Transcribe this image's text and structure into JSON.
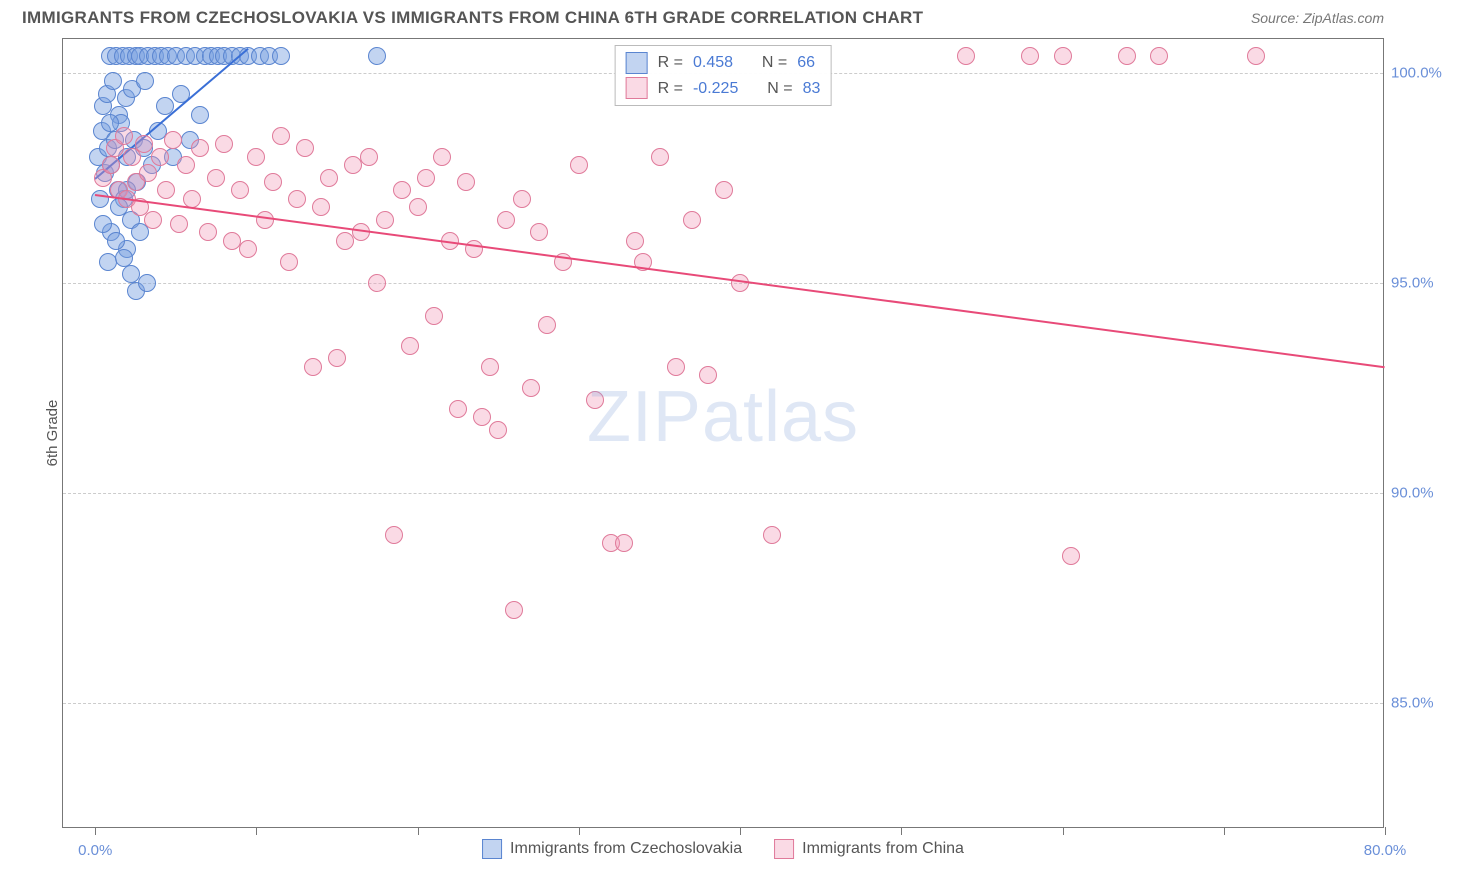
{
  "title": "IMMIGRANTS FROM CZECHOSLOVAKIA VS IMMIGRANTS FROM CHINA 6TH GRADE CORRELATION CHART",
  "source": "Source: ZipAtlas.com",
  "watermark_a": "ZIP",
  "watermark_b": "atlas",
  "chart": {
    "type": "scatter",
    "background_color": "#ffffff",
    "border_color": "#777777",
    "grid_color": "#cccccc",
    "yaxis": {
      "title": "6th Grade",
      "title_fontsize": 15,
      "title_color": "#555555",
      "min": 82.0,
      "max": 100.8,
      "ticks": [
        85.0,
        90.0,
        95.0,
        100.0
      ],
      "tick_labels": [
        "85.0%",
        "90.0%",
        "95.0%",
        "100.0%"
      ],
      "tick_color": "#6a8fd8",
      "tick_fontsize": 15,
      "label_side": "right"
    },
    "xaxis": {
      "min": -2.0,
      "max": 80.0,
      "ticks": [
        0.0,
        10.0,
        20.0,
        30.0,
        40.0,
        50.0,
        60.0,
        70.0,
        80.0
      ],
      "tick_labels_shown": {
        "0.0": "0.0%",
        "80.0": "80.0%"
      },
      "tick_color": "#6a8fd8",
      "tick_fontsize": 15
    },
    "series": [
      {
        "key": "czech",
        "label": "Immigrants from Czechoslovakia",
        "marker_color_fill": "rgba(120,160,225,0.45)",
        "marker_color_stroke": "#5a85d0",
        "marker_radius": 9,
        "trend_color": "#3a6fd6",
        "trend_width": 2,
        "trend": {
          "x1": 0.0,
          "y1": 97.5,
          "x2": 9.5,
          "y2": 100.6
        },
        "R": "0.458",
        "N": "66",
        "points": [
          [
            0.2,
            98.0
          ],
          [
            0.4,
            98.6
          ],
          [
            0.5,
            99.2
          ],
          [
            0.6,
            97.6
          ],
          [
            0.7,
            99.5
          ],
          [
            0.8,
            98.2
          ],
          [
            0.9,
            100.4
          ],
          [
            1.0,
            97.8
          ],
          [
            1.1,
            99.8
          ],
          [
            1.2,
            98.4
          ],
          [
            1.3,
            100.4
          ],
          [
            1.4,
            97.2
          ],
          [
            1.5,
            99.0
          ],
          [
            1.6,
            98.8
          ],
          [
            1.7,
            100.4
          ],
          [
            1.8,
            97.0
          ],
          [
            1.9,
            99.4
          ],
          [
            2.0,
            98.0
          ],
          [
            2.1,
            100.4
          ],
          [
            2.2,
            96.5
          ],
          [
            2.3,
            99.6
          ],
          [
            2.4,
            98.4
          ],
          [
            2.5,
            100.4
          ],
          [
            2.6,
            97.4
          ],
          [
            2.8,
            100.4
          ],
          [
            3.0,
            98.2
          ],
          [
            3.1,
            99.8
          ],
          [
            3.3,
            100.4
          ],
          [
            3.5,
            97.8
          ],
          [
            3.7,
            100.4
          ],
          [
            3.9,
            98.6
          ],
          [
            4.1,
            100.4
          ],
          [
            4.3,
            99.2
          ],
          [
            4.5,
            100.4
          ],
          [
            4.8,
            98.0
          ],
          [
            5.0,
            100.4
          ],
          [
            5.3,
            99.5
          ],
          [
            5.6,
            100.4
          ],
          [
            5.9,
            98.4
          ],
          [
            6.2,
            100.4
          ],
          [
            6.5,
            99.0
          ],
          [
            6.8,
            100.4
          ],
          [
            7.2,
            100.4
          ],
          [
            7.6,
            100.4
          ],
          [
            8.0,
            100.4
          ],
          [
            8.5,
            100.4
          ],
          [
            9.0,
            100.4
          ],
          [
            9.5,
            100.4
          ],
          [
            10.2,
            100.4
          ],
          [
            10.8,
            100.4
          ],
          [
            11.5,
            100.4
          ],
          [
            2.0,
            95.8
          ],
          [
            2.2,
            95.2
          ],
          [
            2.5,
            94.8
          ],
          [
            1.0,
            96.2
          ],
          [
            1.5,
            96.8
          ],
          [
            0.8,
            95.5
          ],
          [
            2.8,
            96.2
          ],
          [
            3.2,
            95.0
          ],
          [
            17.5,
            100.4
          ],
          [
            0.3,
            97.0
          ],
          [
            0.5,
            96.4
          ],
          [
            1.8,
            95.6
          ],
          [
            0.9,
            98.8
          ],
          [
            1.3,
            96.0
          ],
          [
            2.0,
            97.2
          ]
        ]
      },
      {
        "key": "china",
        "label": "Immigrants from China",
        "marker_color_fill": "rgba(240,150,180,0.35)",
        "marker_color_stroke": "#e07a9a",
        "marker_radius": 9,
        "trend_color": "#e84a78",
        "trend_width": 2,
        "trend": {
          "x1": 0.0,
          "y1": 97.1,
          "x2": 80.0,
          "y2": 93.0
        },
        "R": "-0.225",
        "N": "83",
        "points": [
          [
            0.5,
            97.5
          ],
          [
            1.0,
            97.8
          ],
          [
            1.2,
            98.2
          ],
          [
            1.5,
            97.2
          ],
          [
            1.8,
            98.5
          ],
          [
            2.0,
            97.0
          ],
          [
            2.3,
            98.0
          ],
          [
            2.5,
            97.4
          ],
          [
            2.8,
            96.8
          ],
          [
            3.0,
            98.3
          ],
          [
            3.3,
            97.6
          ],
          [
            3.6,
            96.5
          ],
          [
            4.0,
            98.0
          ],
          [
            4.4,
            97.2
          ],
          [
            4.8,
            98.4
          ],
          [
            5.2,
            96.4
          ],
          [
            5.6,
            97.8
          ],
          [
            6.0,
            97.0
          ],
          [
            6.5,
            98.2
          ],
          [
            7.0,
            96.2
          ],
          [
            7.5,
            97.5
          ],
          [
            8.0,
            98.3
          ],
          [
            8.5,
            96.0
          ],
          [
            9.0,
            97.2
          ],
          [
            9.5,
            95.8
          ],
          [
            10.0,
            98.0
          ],
          [
            10.5,
            96.5
          ],
          [
            11.0,
            97.4
          ],
          [
            11.5,
            98.5
          ],
          [
            12.0,
            95.5
          ],
          [
            12.5,
            97.0
          ],
          [
            13.0,
            98.2
          ],
          [
            13.5,
            93.0
          ],
          [
            14.0,
            96.8
          ],
          [
            14.5,
            97.5
          ],
          [
            15.0,
            93.2
          ],
          [
            15.5,
            96.0
          ],
          [
            16.0,
            97.8
          ],
          [
            16.5,
            96.2
          ],
          [
            17.0,
            98.0
          ],
          [
            17.5,
            95.0
          ],
          [
            18.0,
            96.5
          ],
          [
            18.5,
            89.0
          ],
          [
            19.0,
            97.2
          ],
          [
            19.5,
            93.5
          ],
          [
            20.0,
            96.8
          ],
          [
            20.5,
            97.5
          ],
          [
            21.0,
            94.2
          ],
          [
            21.5,
            98.0
          ],
          [
            22.0,
            96.0
          ],
          [
            22.5,
            92.0
          ],
          [
            23.0,
            97.4
          ],
          [
            23.5,
            95.8
          ],
          [
            24.0,
            91.8
          ],
          [
            24.5,
            93.0
          ],
          [
            25.0,
            91.5
          ],
          [
            25.5,
            96.5
          ],
          [
            26.0,
            87.2
          ],
          [
            26.5,
            97.0
          ],
          [
            27.0,
            92.5
          ],
          [
            27.5,
            96.2
          ],
          [
            28.0,
            94.0
          ],
          [
            29.0,
            95.5
          ],
          [
            30.0,
            97.8
          ],
          [
            31.0,
            92.2
          ],
          [
            32.0,
            88.8
          ],
          [
            32.8,
            88.8
          ],
          [
            33.5,
            96.0
          ],
          [
            34.0,
            95.5
          ],
          [
            35.0,
            98.0
          ],
          [
            36.0,
            93.0
          ],
          [
            37.0,
            96.5
          ],
          [
            38.0,
            92.8
          ],
          [
            39.0,
            97.2
          ],
          [
            40.0,
            95.0
          ],
          [
            42.0,
            89.0
          ],
          [
            54.0,
            100.4
          ],
          [
            60.0,
            100.4
          ],
          [
            60.5,
            88.5
          ],
          [
            64.0,
            100.4
          ],
          [
            66.0,
            100.4
          ],
          [
            72.0,
            100.4
          ],
          [
            58.0,
            100.4
          ]
        ]
      }
    ],
    "stats_legend": {
      "border_color": "#bbbbbb",
      "label_color": "#555555",
      "value_color": "#4a7ad4",
      "fontsize": 16
    },
    "bottom_legend": {
      "fontsize": 16,
      "color": "#555555"
    }
  }
}
